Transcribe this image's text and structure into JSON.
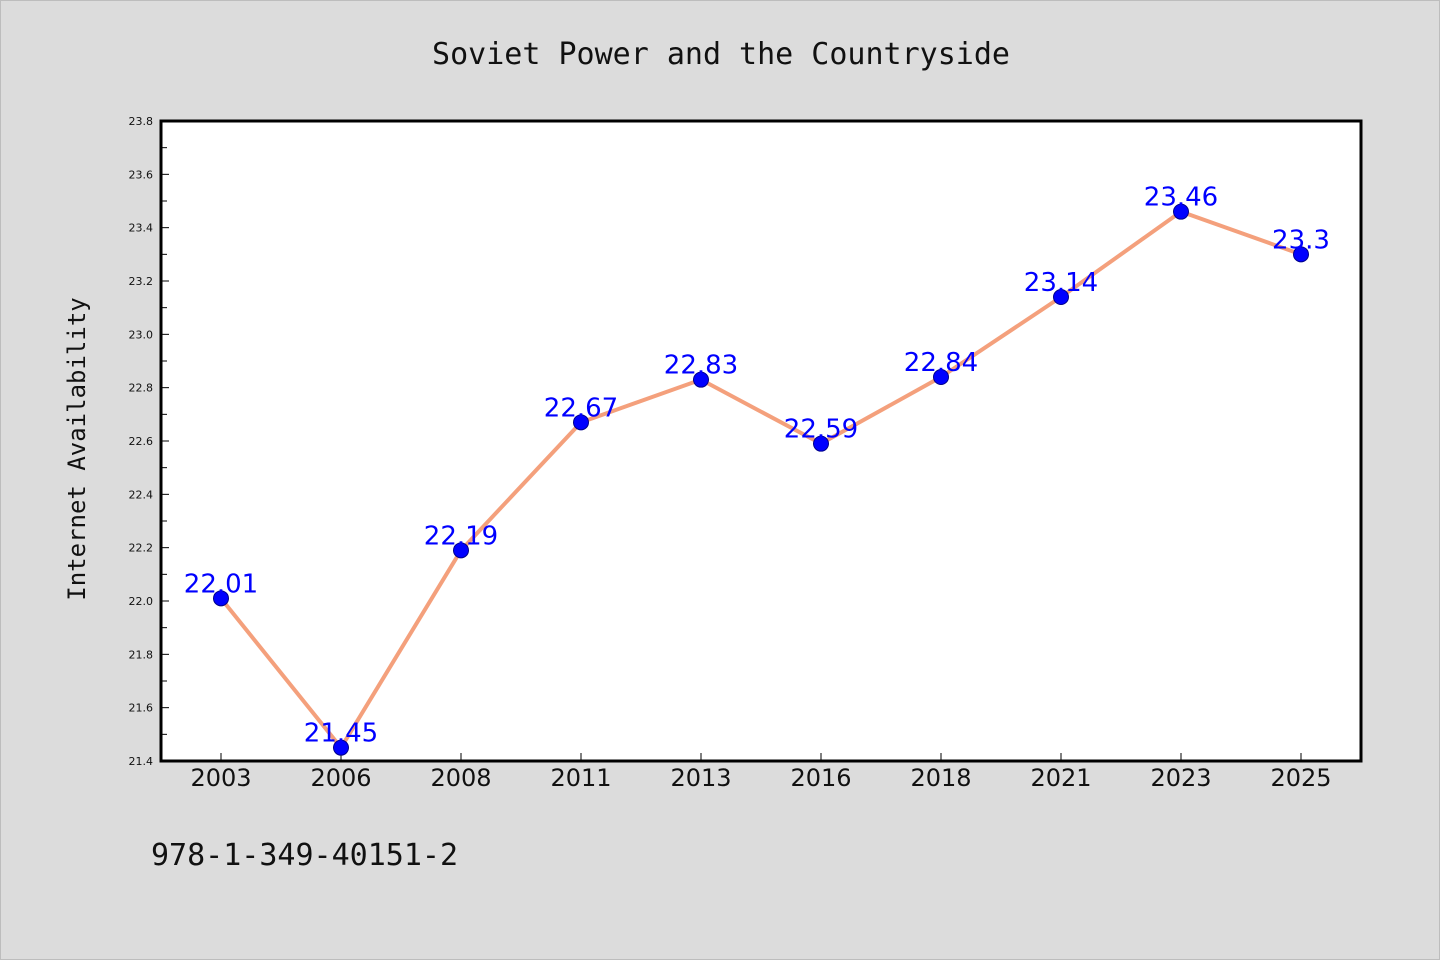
{
  "chart_data": {
    "type": "line",
    "title": "Soviet Power and the Countryside",
    "xlabel": "",
    "ylabel": "Internet Availability",
    "categories": [
      "2003",
      "2006",
      "2008",
      "2011",
      "2013",
      "2016",
      "2018",
      "2021",
      "2023",
      "2025"
    ],
    "series": [
      {
        "values": [
          22.01,
          21.45,
          22.19,
          22.67,
          22.83,
          22.59,
          22.84,
          23.14,
          23.46,
          23.3
        ],
        "labels": [
          "22.01",
          "21.45",
          "22.19",
          "22.67",
          "22.83",
          "22.59",
          "22.84",
          "23.14",
          "23.46",
          "23.3"
        ],
        "line_color": "#f4a07c",
        "marker_color": "#0000ff"
      }
    ],
    "ylim": [
      21.4,
      23.8
    ],
    "yticks": [
      "21.4",
      "21.6",
      "21.8",
      "22.0",
      "22.2",
      "22.4",
      "22.6",
      "22.8",
      "23.0",
      "23.2",
      "23.4",
      "23.6",
      "23.8"
    ],
    "grid": false,
    "legend": "none"
  },
  "footer": {
    "isbn": "978-1-349-40151-2"
  },
  "colors": {
    "background": "#dcdcdc",
    "plot_background": "#ffffff",
    "line": "#f4a07c",
    "marker": "#0000ff",
    "data_label": "#0000ff"
  }
}
